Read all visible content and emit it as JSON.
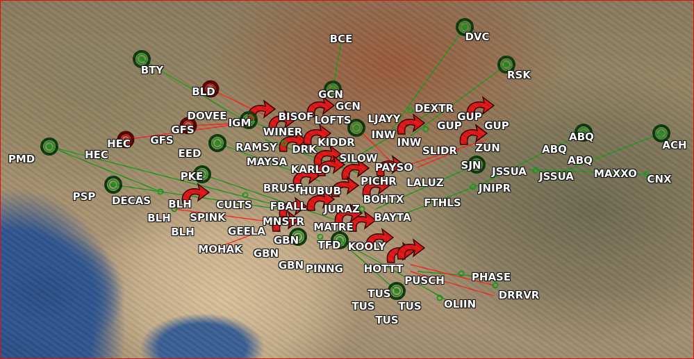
{
  "map": {
    "colors": {
      "route_green": "#1a9a1a",
      "route_red": "#ff2020",
      "navaid_green": "#1f8f1f",
      "navaid_red": "#d01010",
      "arrow_red": "#e01515",
      "frame": "#e01010"
    },
    "labels": [
      "BCE",
      "DVC",
      "BTY",
      "RSK",
      "BLD",
      "GCN",
      "GCN",
      "BISOF",
      "LOFTS",
      "DEXTR",
      "LJAYY",
      "GUP",
      "GUP",
      "GUP",
      "DOVEE",
      "IGM",
      "WINER",
      "GFS",
      "GFS",
      "INW",
      "INW",
      "KIDDR",
      "HEC",
      "HEC",
      "ABQ",
      "ABQ",
      "ABQ",
      "ACH",
      "RAMSY",
      "DRK",
      "SLIDR",
      "ZUN",
      "EED",
      "SILOW",
      "PMD",
      "MAYSA",
      "KARLO",
      "PAYSO",
      "SJN",
      "JSSUA",
      "JSSUA",
      "MAXXO",
      "CNX",
      "PKE",
      "PICHR",
      "LALUZ",
      "JNIPR",
      "BRUSF",
      "HUBUB",
      "PSP",
      "DECAS",
      "BLH",
      "BLH",
      "BLH",
      "CULTS",
      "FBALL",
      "JURAZ",
      "BOHTX",
      "FTHLS",
      "SPINK",
      "BAYTA",
      "MNSTR",
      "GEELA",
      "MATRE",
      "GBN",
      "GBN",
      "GBN",
      "TFD",
      "KOOLY",
      "MOHAK",
      "PINNG",
      "HOTTT",
      "PHASE",
      "PUSCH",
      "DRRVR",
      "TUS",
      "TUS",
      "TUS",
      "TUS",
      "OLIIN"
    ],
    "icons": {
      "navaid": "concentric-circle-navaid-icon",
      "fix": "small-ring-fix-icon",
      "holding": "red-curved-arrow-icon"
    }
  }
}
